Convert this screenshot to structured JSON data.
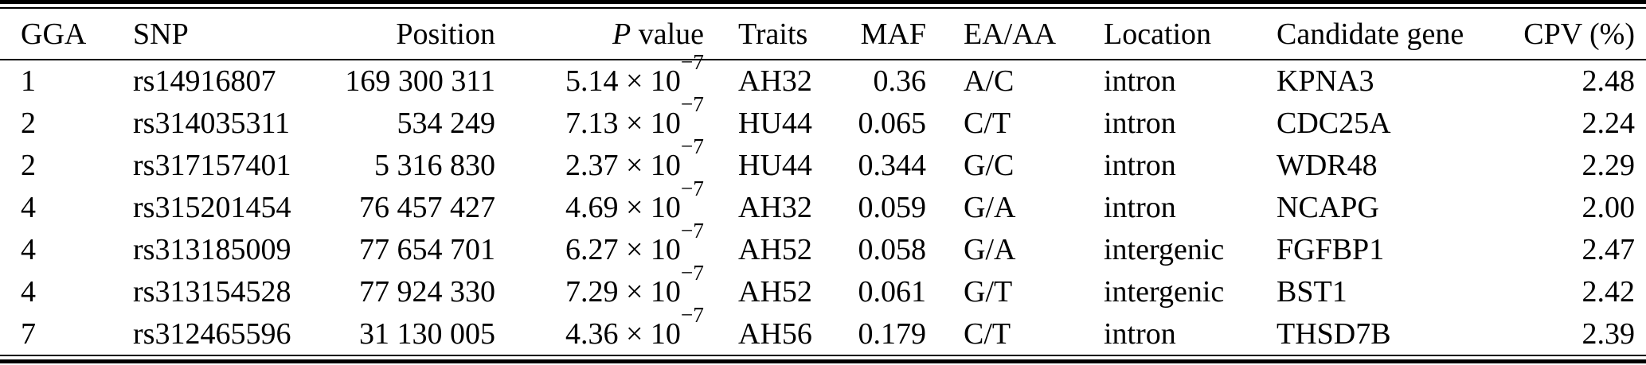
{
  "colors": {
    "text": "#000000",
    "background": "#ffffff",
    "rule": "#000000"
  },
  "table": {
    "columns": [
      {
        "id": "gga",
        "label": "GGA"
      },
      {
        "id": "snp",
        "label": "SNP"
      },
      {
        "id": "position",
        "label": "Position"
      },
      {
        "id": "p_value",
        "label_italic": "P",
        "label_rest": " value"
      },
      {
        "id": "traits",
        "label": "Traits"
      },
      {
        "id": "maf",
        "label": "MAF"
      },
      {
        "id": "ea_aa",
        "label": "EA/AA"
      },
      {
        "id": "location",
        "label": "Location"
      },
      {
        "id": "candidate_gene",
        "label": "Candidate gene"
      },
      {
        "id": "cpv_percent",
        "label": "CPV (%)"
      }
    ],
    "rows": [
      {
        "gga": "1",
        "snp": "rs14916807",
        "position": "169 300 311",
        "p_mantissa": "5.14 × 10",
        "p_exponent": "−7",
        "traits": "AH32",
        "maf": "0.36",
        "ea_aa": "A/C",
        "location": "intron",
        "candidate_gene": "KPNA3",
        "cpv": "2.48"
      },
      {
        "gga": "2",
        "snp": "rs314035311",
        "position": "534 249",
        "p_mantissa": "7.13 × 10",
        "p_exponent": "−7",
        "traits": "HU44",
        "maf": "0.065",
        "ea_aa": "C/T",
        "location": "intron",
        "candidate_gene": "CDC25A",
        "cpv": "2.24"
      },
      {
        "gga": "2",
        "snp": "rs317157401",
        "position": "5 316 830",
        "p_mantissa": "2.37 × 10",
        "p_exponent": "−7",
        "traits": "HU44",
        "maf": "0.344",
        "ea_aa": "G/C",
        "location": "intron",
        "candidate_gene": "WDR48",
        "cpv": "2.29"
      },
      {
        "gga": "4",
        "snp": "rs315201454",
        "position": "76 457 427",
        "p_mantissa": "4.69 × 10",
        "p_exponent": "−7",
        "traits": "AH32",
        "maf": "0.059",
        "ea_aa": "G/A",
        "location": "intron",
        "candidate_gene": "NCAPG",
        "cpv": "2.00"
      },
      {
        "gga": "4",
        "snp": "rs313185009",
        "position": "77 654 701",
        "p_mantissa": "6.27 × 10",
        "p_exponent": "−7",
        "traits": "AH52",
        "maf": "0.058",
        "ea_aa": "G/A",
        "location": "intergenic",
        "candidate_gene": "FGFBP1",
        "cpv": "2.47"
      },
      {
        "gga": "4",
        "snp": "rs313154528",
        "position": "77 924 330",
        "p_mantissa": "7.29 × 10",
        "p_exponent": "−7",
        "traits": "AH52",
        "maf": "0.061",
        "ea_aa": "G/T",
        "location": "intergenic",
        "candidate_gene": "BST1",
        "cpv": "2.42"
      },
      {
        "gga": "7",
        "snp": "rs312465596",
        "position": "31 130 005",
        "p_mantissa": "4.36 × 10",
        "p_exponent": "−7",
        "traits": "AH56",
        "maf": "0.179",
        "ea_aa": "C/T",
        "location": "intron",
        "candidate_gene": "THSD7B",
        "cpv": "2.39"
      }
    ]
  }
}
